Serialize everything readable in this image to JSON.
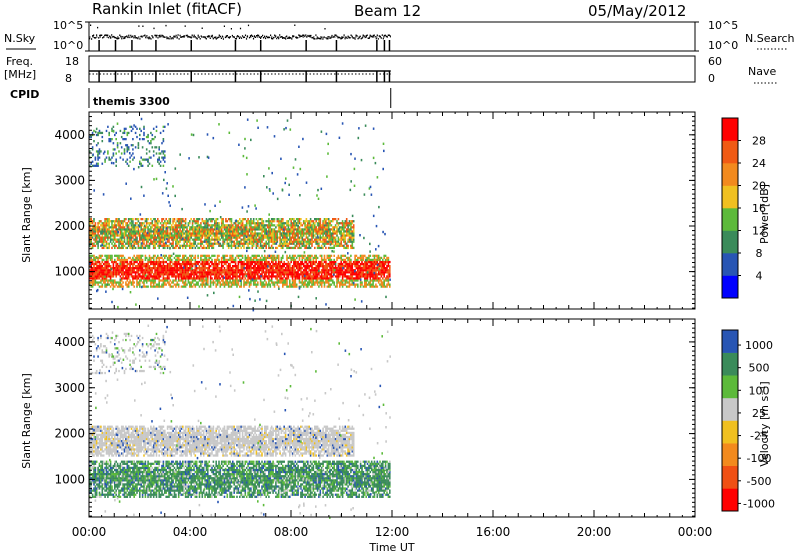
{
  "header": {
    "site": "Rankin Inlet (fitACF)",
    "beam": "Beam 12",
    "date": "05/May/2012"
  },
  "strips": {
    "nsky_label": "N.Sky",
    "nsky_ticks": [
      "10^5",
      "10^0"
    ],
    "nsearch_label": "N.Search",
    "nsearch_ticks": [
      "10^5",
      "10^0"
    ],
    "freq_label_line1": "Freq.",
    "freq_label_line2": "[MHz]",
    "freq_ticks": [
      "18",
      "8"
    ],
    "nave_label": "Nave",
    "nave_ticks": [
      "60",
      "0"
    ],
    "cpid_label": "CPID",
    "cpid_value": "themis 3300"
  },
  "colors": {
    "power": [
      "#0000ff",
      "#2855b4",
      "#3a8b5a",
      "#5cba3a",
      "#f0c020",
      "#f28a1e",
      "#f05a14",
      "#ff0000"
    ],
    "velocity": [
      "#ff0000",
      "#f05014",
      "#f28a1e",
      "#f0c020",
      "#c8c8c8",
      "#5cba3a",
      "#3a8b5a",
      "#2855b4"
    ],
    "accent_black": "#000000"
  },
  "chart_data": [
    {
      "type": "heatmap",
      "title": "",
      "xlabel": "Time UT",
      "ylabel": "Slant Range [km]",
      "x_ticks": [
        "00:00",
        "04:00",
        "08:00",
        "12:00",
        "16:00",
        "20:00",
        "00:00"
      ],
      "xlim": [
        0,
        24
      ],
      "y_ticks": [
        "1000",
        "2000",
        "3000",
        "4000"
      ],
      "ylim": [
        180,
        4500
      ],
      "colorbar": {
        "label": "Power [dB]",
        "ticks": [
          "4",
          "8",
          "12",
          "16",
          "20",
          "24",
          "28"
        ],
        "range": [
          0,
          32
        ]
      },
      "bands": [
        {
          "t0": 0.0,
          "t1": 11.9,
          "r0": 650,
          "r1": 1350,
          "value": "high"
        },
        {
          "t0": 0.0,
          "t1": 10.5,
          "r0": 1500,
          "r1": 2150,
          "value": "mid"
        },
        {
          "t0": 0.0,
          "t1": 3.0,
          "r0": 3300,
          "r1": 4200,
          "value": "low"
        }
      ]
    },
    {
      "type": "heatmap",
      "title": "",
      "xlabel": "Time UT",
      "ylabel": "Slant Range [km]",
      "x_ticks": [
        "00:00",
        "04:00",
        "08:00",
        "12:00",
        "16:00",
        "20:00",
        "00:00"
      ],
      "xlim": [
        0,
        24
      ],
      "y_ticks": [
        "1000",
        "2000",
        "3000",
        "4000"
      ],
      "ylim": [
        180,
        4500
      ],
      "colorbar": {
        "label": "Velocity [m s⁻¹]",
        "ticks": [
          "1000",
          "500",
          "100",
          "25",
          "-25",
          "-100",
          "-500",
          "-1000"
        ],
        "range": [
          -1250,
          1250
        ]
      },
      "bands": [
        {
          "t0": 0.0,
          "t1": 11.9,
          "r0": 600,
          "r1": 1400,
          "value": "100 to 500"
        },
        {
          "t0": 0.0,
          "t1": 10.5,
          "r0": 1500,
          "r1": 2150,
          "value": "-25 to 25"
        },
        {
          "t0": 0.0,
          "t1": 3.0,
          "r0": 3300,
          "r1": 4200,
          "value": "-25 to 25"
        }
      ]
    }
  ]
}
